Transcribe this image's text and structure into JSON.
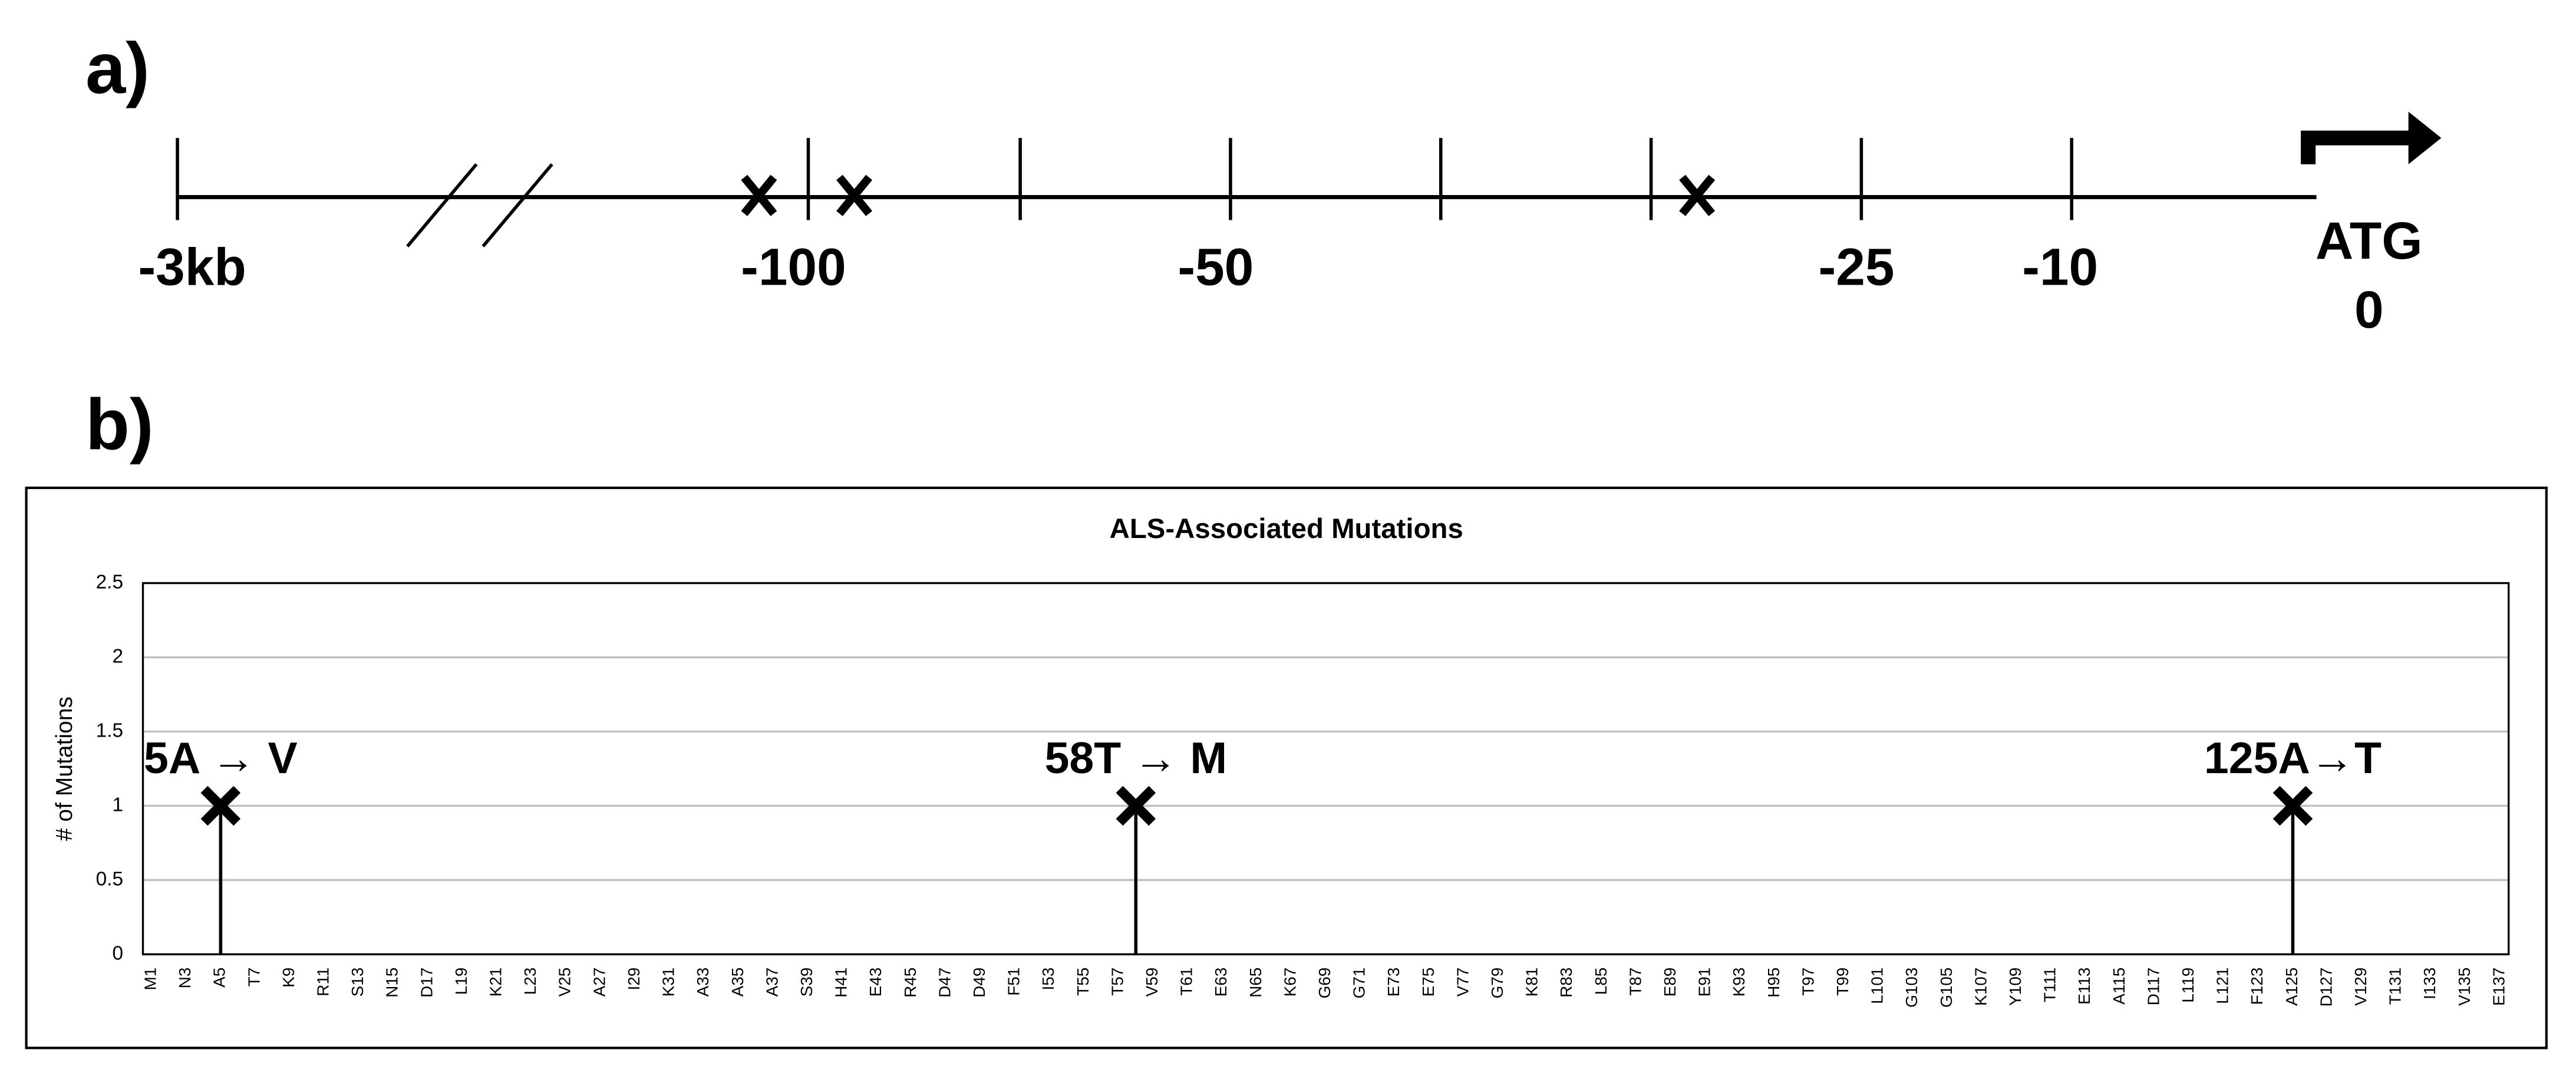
{
  "panel_a": {
    "label": "a)",
    "tick_labels": [
      "-3kb",
      "-100",
      "-50",
      "-25",
      "-10"
    ],
    "start_codon": "ATG",
    "start_position": 0
  },
  "panel_b_label": "b)",
  "chart_data": {
    "type": "stem",
    "title": "ALS-Associated Mutations",
    "y_label": "# of Mutations",
    "categories": [
      "M1",
      null,
      "N3",
      null,
      "A5",
      null,
      "T7",
      null,
      "K9",
      null,
      "R11",
      null,
      "S13",
      null,
      "N15",
      null,
      "D17",
      null,
      "L19",
      null,
      "K21",
      null,
      "L23",
      null,
      "V25",
      null,
      "A27",
      null,
      "I29",
      null,
      "K31",
      null,
      "A33",
      null,
      "A35",
      null,
      "A37",
      null,
      "S39",
      null,
      "H41",
      null,
      "E43",
      null,
      "R45",
      null,
      "D47",
      null,
      "D49",
      null,
      "F51",
      null,
      "I53",
      null,
      "T55",
      null,
      "T57",
      null,
      "V59",
      null,
      "T61",
      null,
      "E63",
      null,
      "N65",
      null,
      "K67",
      null,
      "G69",
      null,
      "G71",
      null,
      "E73",
      null,
      "E75",
      null,
      "V77",
      null,
      "G79",
      null,
      "K81",
      null,
      "R83",
      null,
      "L85",
      null,
      "T87",
      null,
      "E89",
      null,
      "E91",
      null,
      "K93",
      null,
      "H95",
      null,
      "T97",
      null,
      "T99",
      null,
      "L101",
      null,
      "G103",
      null,
      "G105",
      null,
      "K107",
      null,
      "Y109",
      null,
      "T111",
      null,
      "E113",
      null,
      "A115",
      null,
      "D117",
      null,
      "L119",
      null,
      "L121",
      null,
      "F123",
      null,
      "A125",
      null,
      "D127",
      null,
      "V129",
      null,
      "T131",
      null,
      "I133",
      null,
      "V135",
      null,
      "E137"
    ],
    "values": [
      null,
      null,
      null,
      null,
      1,
      null,
      null,
      null,
      null,
      null,
      null,
      null,
      null,
      null,
      null,
      null,
      null,
      null,
      null,
      null,
      null,
      null,
      null,
      null,
      null,
      null,
      null,
      null,
      null,
      null,
      null,
      null,
      null,
      null,
      null,
      null,
      null,
      null,
      null,
      null,
      null,
      null,
      null,
      null,
      null,
      null,
      null,
      null,
      null,
      null,
      null,
      null,
      null,
      null,
      null,
      null,
      null,
      1,
      null,
      null,
      null,
      null,
      null,
      null,
      null,
      null,
      null,
      null,
      null,
      null,
      null,
      null,
      null,
      null,
      null,
      null,
      null,
      null,
      null,
      null,
      null,
      null,
      null,
      null,
      null,
      null,
      null,
      null,
      null,
      null,
      null,
      null,
      null,
      null,
      null,
      null,
      null,
      null,
      null,
      null,
      null,
      null,
      null,
      null,
      null,
      null,
      null,
      null,
      null,
      null,
      null,
      null,
      null,
      null,
      null,
      null,
      null,
      null,
      null,
      null,
      null,
      null,
      null,
      null,
      1,
      null,
      null,
      null,
      null,
      null,
      null,
      null,
      null,
      null,
      null,
      null,
      null
    ],
    "value_labels": [
      null,
      null,
      null,
      null,
      "5A → V",
      null,
      null,
      null,
      null,
      null,
      null,
      null,
      null,
      null,
      null,
      null,
      null,
      null,
      null,
      null,
      null,
      null,
      null,
      null,
      null,
      null,
      null,
      null,
      null,
      null,
      null,
      null,
      null,
      null,
      null,
      null,
      null,
      null,
      null,
      null,
      null,
      null,
      null,
      null,
      null,
      null,
      null,
      null,
      null,
      null,
      null,
      null,
      null,
      null,
      null,
      null,
      null,
      "58T → M",
      null,
      null,
      null,
      null,
      null,
      null,
      null,
      null,
      null,
      null,
      null,
      null,
      null,
      null,
      null,
      null,
      null,
      null,
      null,
      null,
      null,
      null,
      null,
      null,
      null,
      null,
      null,
      null,
      null,
      null,
      null,
      null,
      null,
      null,
      null,
      null,
      null,
      null,
      null,
      null,
      null,
      null,
      null,
      null,
      null,
      null,
      null,
      null,
      null,
      null,
      null,
      null,
      null,
      null,
      null,
      null,
      null,
      null,
      null,
      null,
      null,
      null,
      null,
      null,
      null,
      null,
      "125A→T",
      null,
      null,
      null,
      null,
      null,
      null,
      null,
      null,
      null,
      null,
      null,
      null
    ],
    "color": "#000000",
    "ylim": [
      0,
      2.5
    ],
    "yticks": [
      0,
      0.5,
      1,
      1.5,
      2,
      2.5
    ],
    "grid": true
  }
}
